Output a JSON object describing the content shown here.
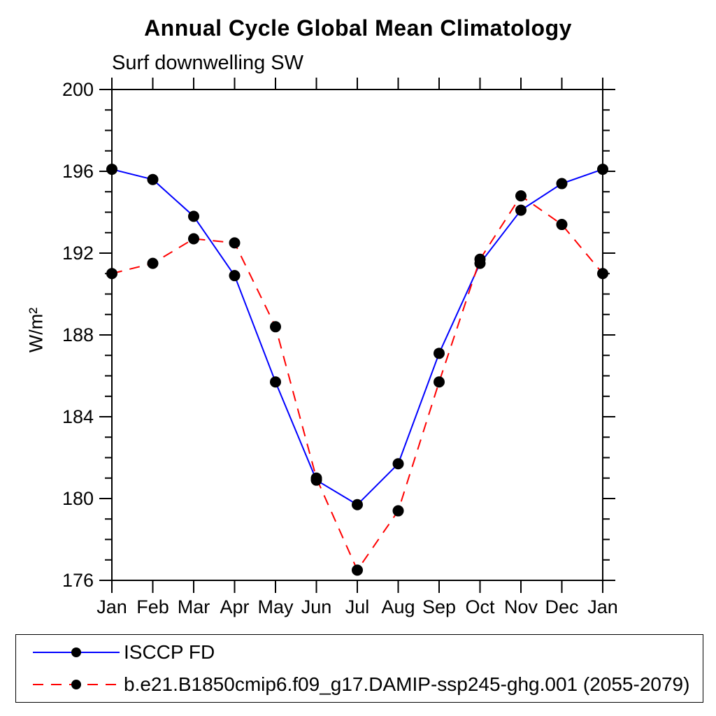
{
  "chart_data": {
    "type": "line",
    "title": "Annual Cycle Global Mean Climatology",
    "subtitle": "Surf downwelling SW",
    "ylabel": "W/m²",
    "xlabel": "",
    "categories": [
      "Jan",
      "Feb",
      "Mar",
      "Apr",
      "May",
      "Jun",
      "Jul",
      "Aug",
      "Sep",
      "Oct",
      "Nov",
      "Dec",
      "Jan"
    ],
    "series": [
      {
        "name": "ISCCP FD",
        "color": "#0000ff",
        "line_style": "solid",
        "marker": "filled-circle",
        "marker_color": "#000000",
        "values": [
          196.1,
          195.6,
          193.8,
          190.9,
          185.7,
          180.9,
          179.7,
          181.7,
          187.1,
          191.5,
          194.1,
          195.4,
          196.1
        ]
      },
      {
        "name": "b.e21.B1850cmip6.f09_g17.DAMIP-ssp245-ghg.001 (2055-2079)",
        "color": "#ff0000",
        "line_style": "dashed",
        "marker": "filled-circle",
        "marker_color": "#000000",
        "values": [
          191.0,
          191.5,
          192.7,
          192.5,
          188.4,
          181.0,
          176.5,
          179.4,
          185.7,
          191.7,
          194.8,
          193.4,
          191.0
        ]
      }
    ],
    "ylim": [
      176,
      200
    ],
    "ytick_major": 4,
    "ytick_minor": 1,
    "grid": false,
    "axis_color": "#000000",
    "legend_position": "bottom"
  }
}
